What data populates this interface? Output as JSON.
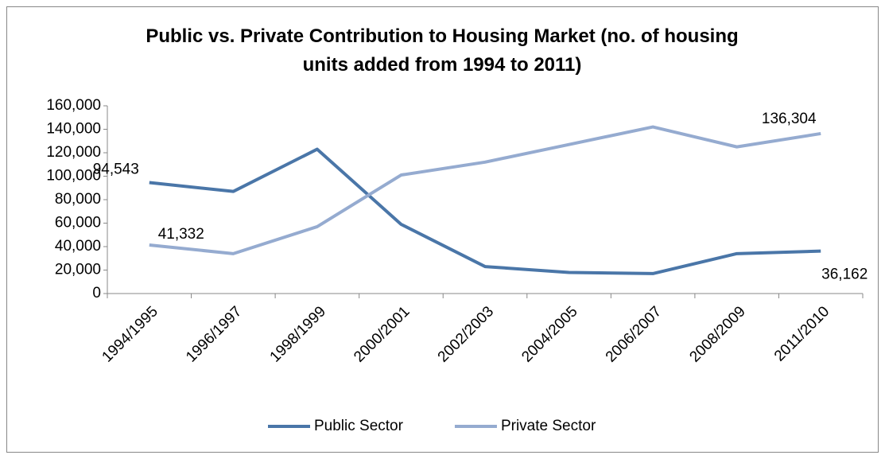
{
  "chart_data": {
    "type": "line",
    "title": "Public vs. Private Contribution to Housing Market (no.  of housing units added from 1994 to 2011)",
    "categories": [
      "1994/1995",
      "1996/1997",
      "1998/1999",
      "2000/2001",
      "2002/2003",
      "2004/2005",
      "2006/2007",
      "2008/2009",
      "2011/2010"
    ],
    "series": [
      {
        "name": "Public Sector",
        "color": "#4a76a8",
        "values": [
          94543,
          87000,
          123000,
          59000,
          23000,
          18000,
          17000,
          34000,
          36162
        ],
        "value_labels": [
          "94,543",
          null,
          null,
          null,
          null,
          null,
          null,
          null,
          "36,162"
        ]
      },
      {
        "name": "Private Sector",
        "color": "#95abd0",
        "values": [
          41332,
          34000,
          57000,
          101000,
          112000,
          127000,
          142000,
          125000,
          136304
        ],
        "value_labels": [
          "41,332",
          null,
          null,
          null,
          null,
          null,
          null,
          null,
          "136,304"
        ]
      }
    ],
    "ylim": [
      0,
      160000
    ],
    "yticks": [
      0,
      {
        "value": 20000,
        "label": "20,000"
      },
      {
        "value": 40000,
        "label": "40,000"
      },
      {
        "value": 60000,
        "label": "60,000"
      },
      {
        "value": 80000,
        "label": "80,000"
      },
      {
        "value": 100000,
        "label": "100,000"
      },
      {
        "value": 120000,
        "label": "120,000"
      },
      {
        "value": 140000,
        "label": "140,000"
      },
      {
        "value": 160000,
        "label": "160,000"
      }
    ],
    "legend": "bottom"
  }
}
